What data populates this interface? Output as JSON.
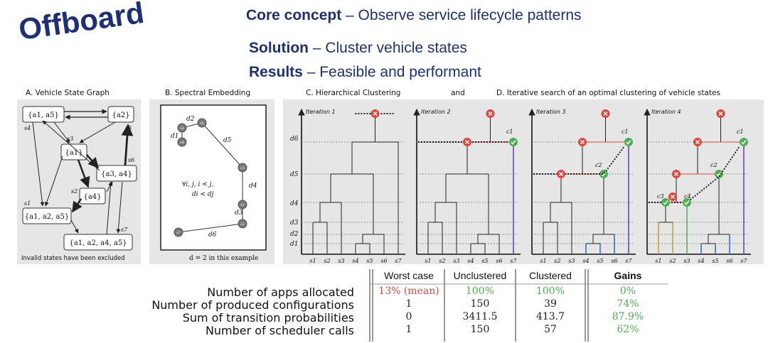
{
  "title": "Offboard",
  "headline": {
    "core_label": "Core concept",
    "core_text": " – Observe service lifecycle patterns",
    "solution_label": "Solution",
    "solution_text": " – Cluster vehicle states",
    "results_label": "Results",
    "results_text": " – Feasible and performant"
  },
  "panel_a": {
    "title": "A. Vehicle State Graph",
    "caption": "Invalid states have been excluded",
    "nodes": [
      "{a1, a5}",
      "{a2}",
      "{a1}",
      "{a3, a4}",
      "{a4}",
      "{a1, a2, a5}",
      "{a1, a2, a4, a5}"
    ],
    "state_labels": [
      "s4",
      "s5",
      "s3",
      "s6",
      "s2",
      "s1",
      "s7"
    ]
  },
  "panel_b": {
    "title": "B. Spectral Embedding",
    "caption": "d = 2 in this example",
    "condition_line1": "∀i, j, i < j,",
    "condition_line2": "di < dj",
    "dist_labels": [
      "d2",
      "d1",
      "d5",
      "d4",
      "d3",
      "d6"
    ],
    "point_labels": [
      "s5",
      "s6",
      "s4",
      "s3",
      "s1",
      "s2",
      "s7"
    ]
  },
  "panel_cd": {
    "title_c": "C. Hierarchical Clustering",
    "title_and": "and",
    "title_d": "D. Iterative search of an optimal clustering of vehicle states",
    "iterations": [
      "Iteration 1",
      "Iteration 2",
      "Iteration 3",
      "Iteration 4"
    ],
    "y_labels": [
      "d6",
      "d5",
      "d4",
      "d3",
      "d2",
      "d1"
    ],
    "x_labels": [
      "s1",
      "s2",
      "s3",
      "s4",
      "s5",
      "s6",
      "s7"
    ],
    "cluster_labels": [
      "c1",
      "c2",
      "c3",
      "c4"
    ]
  },
  "table": {
    "headers": [
      "Worst case",
      "Unclustered",
      "Clustered",
      "Gains"
    ],
    "rows": [
      {
        "label": "Number of apps allocated",
        "values": [
          "13% (mean)",
          "100%",
          "100%",
          "0%"
        ]
      },
      {
        "label": "Number of produced configurations",
        "values": [
          "1",
          "150",
          "39",
          "74%"
        ]
      },
      {
        "label": "Sum of transition probabilities",
        "values": [
          "0",
          "3411.5",
          "413.7",
          "87.9%"
        ]
      },
      {
        "label": "Number of scheduler calls",
        "values": [
          "1",
          "150",
          "57",
          "62%"
        ]
      }
    ]
  },
  "colors": {
    "title_blue": "#1e2f7a",
    "red": "#e0453a",
    "green": "#4caf50",
    "blue": "#2a66c9",
    "olive": "#b8a23a",
    "purple": "#5b3fb0",
    "node_gray": "#777777"
  }
}
